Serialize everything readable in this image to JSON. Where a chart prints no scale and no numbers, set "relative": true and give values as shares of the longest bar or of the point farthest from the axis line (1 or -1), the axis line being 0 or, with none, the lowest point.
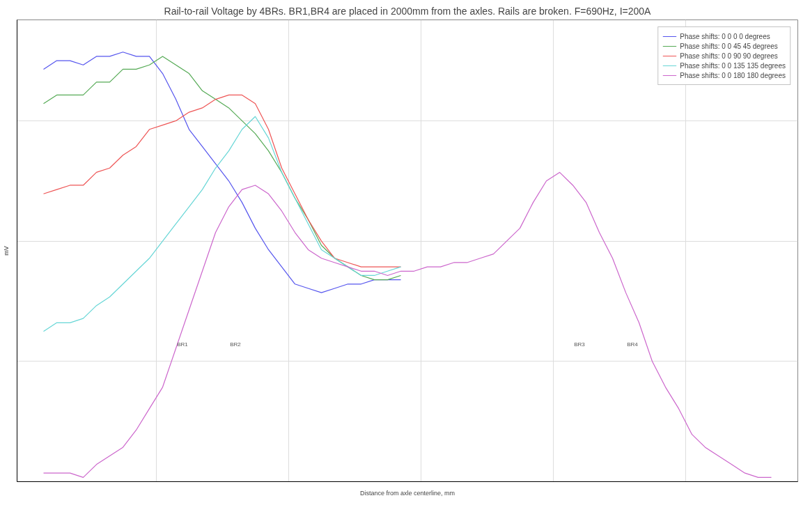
{
  "chart_data": {
    "type": "line",
    "relative": true,
    "title": "Rail-to-rail Voltage by 4BRs. BR1,BR4 are placed in 2000mm from the axles. Rails are broken. F=690Hz, I=200A",
    "xlabel": "Distance from axle centerline, mm",
    "ylabel": "mV",
    "categories": [
      null,
      null,
      null,
      null,
      null,
      null,
      null,
      null,
      null,
      null,
      null,
      null,
      null,
      null,
      null,
      null,
      null,
      null,
      null,
      null,
      null,
      null,
      null,
      null,
      null,
      null,
      null,
      null,
      null,
      null,
      null,
      null,
      null,
      null,
      null,
      null,
      null,
      null,
      null,
      null,
      null,
      null,
      null,
      null,
      null,
      null,
      null,
      null,
      null,
      null,
      null,
      null,
      null,
      null,
      null,
      null
    ],
    "series": [
      {
        "name": "Phase shifts: 0 0 0 0 degrees",
        "color": "#5555ee",
        "values": [
          0.96,
          0.98,
          0.98,
          0.97,
          0.99,
          0.99,
          1.0,
          0.99,
          0.99,
          0.95,
          0.89,
          0.82,
          0.78,
          0.74,
          0.7,
          0.65,
          0.59,
          0.54,
          0.5,
          0.46,
          0.45,
          0.44,
          0.45,
          0.46,
          0.46,
          0.47,
          0.47,
          0.47,
          null,
          null,
          null,
          null,
          null,
          null,
          null,
          null,
          null,
          null,
          null,
          null,
          null,
          null,
          null,
          null,
          null,
          null,
          null,
          null,
          null,
          null,
          null,
          null,
          null,
          null,
          null,
          null
        ]
      },
      {
        "name": "Phase shifts: 0 0 45 45 degrees",
        "color": "#55aa55",
        "values": [
          0.88,
          0.9,
          0.9,
          0.9,
          0.93,
          0.93,
          0.96,
          0.96,
          0.97,
          0.99,
          0.97,
          0.95,
          0.91,
          0.89,
          0.87,
          0.84,
          0.81,
          0.77,
          0.72,
          0.66,
          0.61,
          0.55,
          0.52,
          0.5,
          0.48,
          0.47,
          0.47,
          0.48,
          null,
          null,
          null,
          null,
          null,
          null,
          null,
          null,
          null,
          null,
          null,
          null,
          null,
          null,
          null,
          null,
          null,
          null,
          null,
          null,
          null,
          null,
          null,
          null,
          null,
          null,
          null,
          null
        ]
      },
      {
        "name": "Phase shifts: 0 0 90 90 degrees",
        "color": "#ee5555",
        "values": [
          0.67,
          0.68,
          0.69,
          0.69,
          0.72,
          0.73,
          0.76,
          0.78,
          0.82,
          0.83,
          0.84,
          0.86,
          0.87,
          0.89,
          0.9,
          0.9,
          0.88,
          0.82,
          0.73,
          0.67,
          0.61,
          0.56,
          0.52,
          0.51,
          0.5,
          0.5,
          0.5,
          0.5,
          null,
          null,
          null,
          null,
          null,
          null,
          null,
          null,
          null,
          null,
          null,
          null,
          null,
          null,
          null,
          null,
          null,
          null,
          null,
          null,
          null,
          null,
          null,
          null,
          null,
          null,
          null,
          null
        ]
      },
      {
        "name": "Phase shifts: 0 0 135 135 degrees",
        "color": "#66d6d6",
        "values": [
          0.35,
          0.37,
          0.37,
          0.38,
          0.41,
          0.43,
          0.46,
          0.49,
          0.52,
          0.56,
          0.6,
          0.64,
          0.68,
          0.73,
          0.77,
          0.82,
          0.85,
          0.8,
          0.72,
          0.66,
          0.6,
          0.54,
          0.52,
          0.5,
          0.48,
          0.48,
          0.49,
          0.5,
          null,
          null,
          null,
          null,
          null,
          null,
          null,
          null,
          null,
          null,
          null,
          null,
          null,
          null,
          null,
          null,
          null,
          null,
          null,
          null,
          null,
          null,
          null,
          null,
          null,
          null,
          null,
          null
        ]
      },
      {
        "name": "Phase shifts: 0 0 180 180 degrees",
        "color": "#cc66cc",
        "values": [
          0.02,
          0.02,
          0.02,
          0.01,
          0.04,
          0.06,
          0.08,
          0.12,
          0.17,
          0.22,
          0.31,
          0.4,
          0.49,
          0.58,
          0.64,
          0.68,
          0.69,
          0.67,
          0.63,
          0.58,
          0.54,
          0.52,
          0.51,
          0.5,
          0.49,
          0.49,
          0.48,
          0.49,
          0.49,
          0.5,
          0.5,
          0.51,
          0.51,
          0.52,
          0.53,
          0.56,
          0.59,
          0.65,
          0.7,
          0.72,
          0.69,
          0.65,
          0.58,
          0.52,
          0.44,
          0.37,
          0.28,
          0.22,
          0.17,
          0.11,
          0.08,
          0.06,
          0.04,
          0.02,
          0.01,
          0.01
        ]
      }
    ],
    "annotations": [
      "BR1",
      "BR2",
      "BR3",
      "BR4"
    ],
    "grid": true,
    "legend": "top right",
    "marker": "none",
    "line_style": "solid"
  }
}
